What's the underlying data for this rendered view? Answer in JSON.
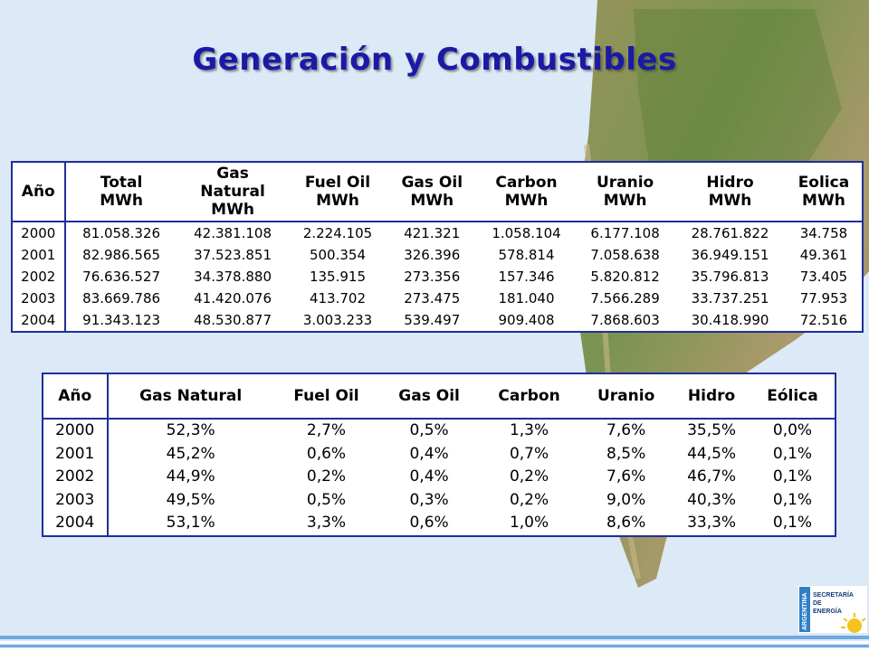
{
  "title": "Generación y Combustibles",
  "colors": {
    "title": "#1a1aa6",
    "border": "#1f2f9a",
    "background": "#dce9f6"
  },
  "table_mwh": {
    "headers": [
      [
        "Año"
      ],
      [
        "Total",
        "MWh"
      ],
      [
        "Gas",
        "Natural",
        "MWh"
      ],
      [
        "Fuel Oil",
        "MWh"
      ],
      [
        "Gas Oil",
        "MWh"
      ],
      [
        "Carbon",
        "MWh"
      ],
      [
        "Uranio",
        "MWh"
      ],
      [
        "Hidro",
        "MWh"
      ],
      [
        "Eolica",
        "MWh"
      ]
    ],
    "rows": [
      [
        "2000",
        "81.058.326",
        "42.381.108",
        "2.224.105",
        "421.321",
        "1.058.104",
        "6.177.108",
        "28.761.822",
        "34.758"
      ],
      [
        "2001",
        "82.986.565",
        "37.523.851",
        "500.354",
        "326.396",
        "578.814",
        "7.058.638",
        "36.949.151",
        "49.361"
      ],
      [
        "2002",
        "76.636.527",
        "34.378.880",
        "135.915",
        "273.356",
        "157.346",
        "5.820.812",
        "35.796.813",
        "73.405"
      ],
      [
        "2003",
        "83.669.786",
        "41.420.076",
        "413.702",
        "273.475",
        "181.040",
        "7.566.289",
        "33.737.251",
        "77.953"
      ],
      [
        "2004",
        "91.343.123",
        "48.530.877",
        "3.003.233",
        "539.497",
        "909.408",
        "7.868.603",
        "30.418.990",
        "72.516"
      ]
    ]
  },
  "table_pct": {
    "headers": [
      "Año",
      "Gas Natural",
      "Fuel Oil",
      "Gas Oil",
      "Carbon",
      "Uranio",
      "Hidro",
      "Eólica"
    ],
    "rows": [
      [
        "2000",
        "52,3%",
        "2,7%",
        "0,5%",
        "1,3%",
        "7,6%",
        "35,5%",
        "0,0%"
      ],
      [
        "2001",
        "45,2%",
        "0,6%",
        "0,4%",
        "0,7%",
        "8,5%",
        "44,5%",
        "0,1%"
      ],
      [
        "2002",
        "44,9%",
        "0,2%",
        "0,4%",
        "0,2%",
        "7,6%",
        "46,7%",
        "0,1%"
      ],
      [
        "2003",
        "49,5%",
        "0,5%",
        "0,3%",
        "0,2%",
        "9,0%",
        "40,3%",
        "0,1%"
      ],
      [
        "2004",
        "53,1%",
        "3,3%",
        "0,6%",
        "1,0%",
        "8,6%",
        "33,3%",
        "0,1%"
      ]
    ]
  },
  "logo": {
    "country": "ARGENTINA",
    "lines": [
      "SECRETARÍA",
      "DE",
      "ENERGÍA"
    ]
  }
}
